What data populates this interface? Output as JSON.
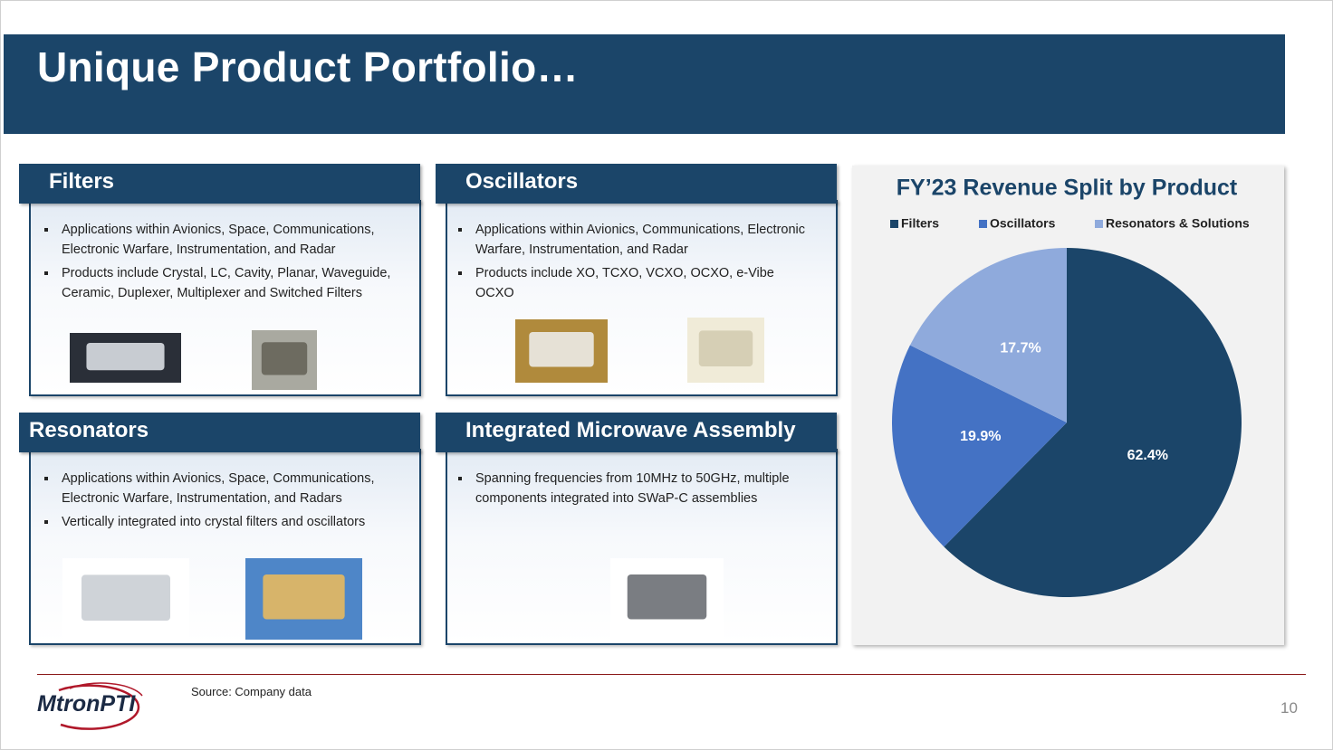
{
  "header": {
    "title": "Unique Product Portfolio…"
  },
  "panels": [
    {
      "title": "Filters",
      "bullets": [
        "Applications within Avionics, Space, Communications, Electronic Warfare, Instrumentation, and Radar",
        "Products include Crystal, LC, Cavity, Planar, Waveguide, Ceramic, Duplexer, Multiplexer and Switched Filters"
      ]
    },
    {
      "title": "Oscillators",
      "bullets": [
        "Applications within Avionics, Communications, Electronic Warfare, Instrumentation, and Radar",
        "Products include XO, TCXO, VCXO, OCXO, e-Vibe OCXO"
      ]
    },
    {
      "title": "Resonators",
      "bullets": [
        "Applications within Avionics, Space, Communications, Electronic Warfare, Instrumentation, and Radars",
        "Vertically integrated into crystal filters and oscillators"
      ]
    },
    {
      "title": "Integrated Microwave Assembly",
      "bullets": [
        "Spanning frequencies from 10MHz to 50GHz, multiple components integrated into SWaP-C assemblies"
      ]
    }
  ],
  "chart_data": {
    "type": "pie",
    "title": "FY’23 Revenue Split by Product",
    "categories": [
      "Filters",
      "Oscillators",
      "Resonators & Solutions"
    ],
    "values": [
      62.4,
      19.9,
      17.7
    ],
    "value_labels": [
      "62.4%",
      "19.9%",
      "17.7%"
    ],
    "colors": [
      "#1b4569",
      "#4472c4",
      "#8faadc"
    ],
    "legend": "top"
  },
  "footer": {
    "source": "Source: Company data",
    "logo": "MtronPTI",
    "page": "10"
  }
}
